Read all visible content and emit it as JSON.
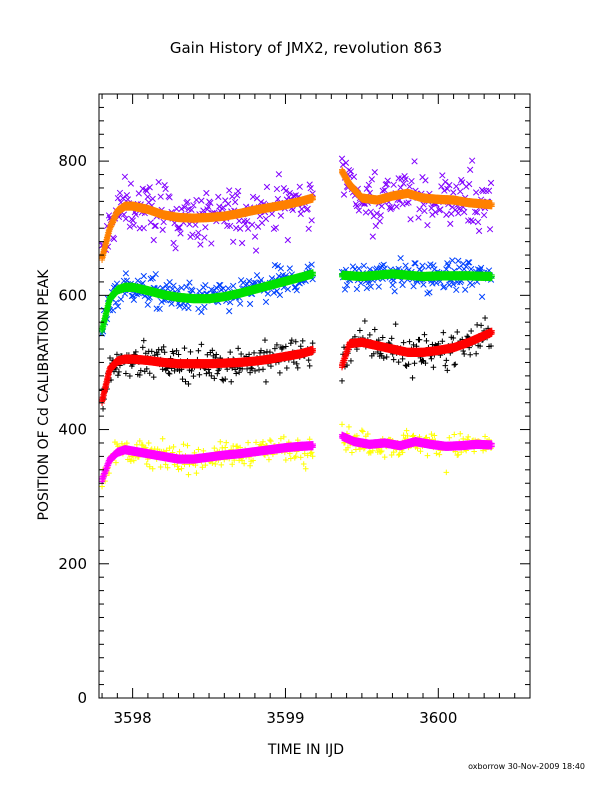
{
  "chart_data": {
    "type": "scatter",
    "title": "Gain History of JMX2, revolution 863",
    "xlabel": "TIME IN IJD",
    "ylabel": "POSITION OF Cd CALIBRATION PEAK",
    "xlim": [
      3597.78,
      3600.6
    ],
    "ylim": [
      0,
      900
    ],
    "xticks": [
      3598,
      3599,
      3600
    ],
    "yticks": [
      0,
      200,
      400,
      600,
      800
    ],
    "footer": "oxborrow 30-Nov-2009 18:40",
    "segments": [
      [
        3597.8,
        3599.18
      ],
      [
        3599.37,
        3600.35
      ]
    ],
    "series": [
      {
        "color": "#8000ff",
        "marker": "x",
        "kind": "scatter",
        "center": "top_smooth",
        "spread": 30
      },
      {
        "color": "#ff8000",
        "marker": "+",
        "kind": "smooth",
        "x": [
          3597.8,
          3597.85,
          3597.9,
          3597.95,
          3598.0,
          3598.1,
          3598.2,
          3598.3,
          3598.4,
          3598.5,
          3598.6,
          3598.7,
          3598.8,
          3598.9,
          3599.0,
          3599.1,
          3599.18,
          3599.37,
          3599.42,
          3599.5,
          3599.6,
          3599.7,
          3599.8,
          3599.9,
          3600.0,
          3600.1,
          3600.2,
          3600.35
        ],
        "y": [
          655,
          700,
          725,
          733,
          733,
          728,
          720,
          716,
          715,
          716,
          718,
          722,
          727,
          731,
          735,
          740,
          745,
          785,
          765,
          745,
          742,
          748,
          752,
          745,
          743,
          742,
          738,
          735
        ]
      },
      {
        "color": "#0040ff",
        "marker": "x",
        "kind": "scatter",
        "center": "mid_smooth",
        "spread": 18
      },
      {
        "color": "#00e000",
        "marker": "+",
        "kind": "smooth",
        "x": [
          3597.8,
          3597.85,
          3597.9,
          3597.95,
          3598.0,
          3598.1,
          3598.2,
          3598.3,
          3598.4,
          3598.5,
          3598.6,
          3598.7,
          3598.8,
          3598.9,
          3599.0,
          3599.1,
          3599.18,
          3599.37,
          3599.5,
          3599.6,
          3599.7,
          3599.8,
          3599.9,
          3600.0,
          3600.1,
          3600.2,
          3600.35
        ],
        "y": [
          548,
          595,
          608,
          612,
          612,
          607,
          601,
          597,
          595,
          595,
          598,
          603,
          609,
          615,
          621,
          627,
          632,
          630,
          628,
          630,
          632,
          630,
          628,
          629,
          629,
          629,
          628
        ]
      },
      {
        "color": "#000000",
        "marker": "+",
        "kind": "scatter",
        "center": "low_smooth",
        "spread": 20
      },
      {
        "color": "#ff0000",
        "marker": "+",
        "kind": "smooth",
        "x": [
          3597.8,
          3597.85,
          3597.9,
          3597.95,
          3598.0,
          3598.1,
          3598.2,
          3598.3,
          3598.4,
          3598.5,
          3598.6,
          3598.7,
          3598.8,
          3598.9,
          3599.0,
          3599.1,
          3599.18,
          3599.37,
          3599.42,
          3599.5,
          3599.6,
          3599.7,
          3599.8,
          3599.9,
          3600.0,
          3600.1,
          3600.2,
          3600.35
        ],
        "y": [
          442,
          490,
          502,
          505,
          505,
          503,
          500,
          498,
          498,
          498,
          499,
          500,
          502,
          505,
          509,
          513,
          518,
          495,
          528,
          530,
          525,
          520,
          515,
          515,
          518,
          522,
          530,
          545
        ]
      },
      {
        "color": "#ffff00",
        "marker": "+",
        "kind": "scatter",
        "center": "bot_smooth",
        "spread": 14
      },
      {
        "color": "#ff00ff",
        "marker": "+",
        "kind": "smooth",
        "x": [
          3597.8,
          3597.85,
          3597.9,
          3597.95,
          3598.0,
          3598.1,
          3598.2,
          3598.3,
          3598.4,
          3598.5,
          3598.6,
          3598.7,
          3598.8,
          3598.9,
          3599.0,
          3599.1,
          3599.18,
          3599.37,
          3599.45,
          3599.55,
          3599.65,
          3599.75,
          3599.85,
          3599.95,
          3600.05,
          3600.15,
          3600.25,
          3600.35
        ],
        "y": [
          325,
          355,
          366,
          370,
          368,
          364,
          360,
          356,
          356,
          359,
          362,
          364,
          367,
          370,
          373,
          375,
          376,
          390,
          382,
          378,
          380,
          376,
          382,
          378,
          375,
          376,
          378,
          377
        ]
      }
    ]
  }
}
